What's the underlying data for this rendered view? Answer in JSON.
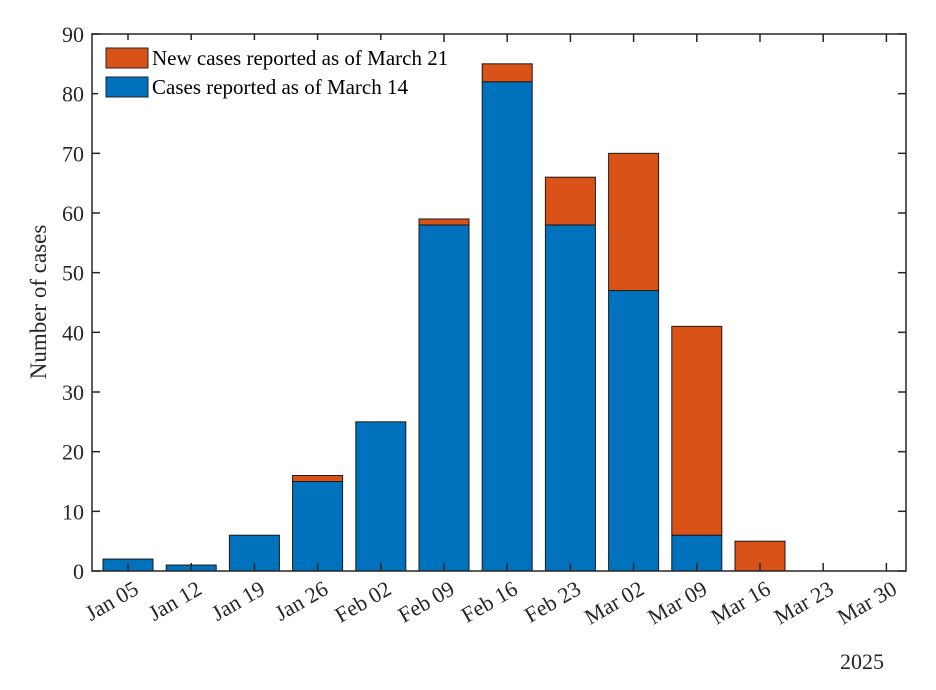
{
  "chart_data": {
    "type": "bar",
    "stacked": true,
    "categories": [
      "Jan 05",
      "Jan 12",
      "Jan 19",
      "Jan 26",
      "Feb 02",
      "Feb 09",
      "Feb 16",
      "Feb 23",
      "Mar 02",
      "Mar 09",
      "Mar 16",
      "Mar 23",
      "Mar 30"
    ],
    "series": [
      {
        "name": "Cases reported as of March 14",
        "color": "#0072bd",
        "values": [
          2,
          1,
          6,
          15,
          25,
          58,
          82,
          58,
          47,
          6,
          0,
          0,
          0
        ]
      },
      {
        "name": "New cases reported as of March 21",
        "color": "#d95319",
        "values": [
          0,
          0,
          0,
          1,
          0,
          1,
          3,
          8,
          23,
          35,
          5,
          0,
          0
        ]
      }
    ],
    "legend_order": [
      "New cases reported as of March 21",
      "Cases reported as of March 14"
    ],
    "legend_position": "top-left",
    "ylabel": "Number of cases",
    "xlabel": "",
    "x_secondary_label": "2025",
    "ylim": [
      0,
      90
    ],
    "yticks": [
      0,
      10,
      20,
      30,
      40,
      50,
      60,
      70,
      80,
      90
    ],
    "grid": false
  }
}
